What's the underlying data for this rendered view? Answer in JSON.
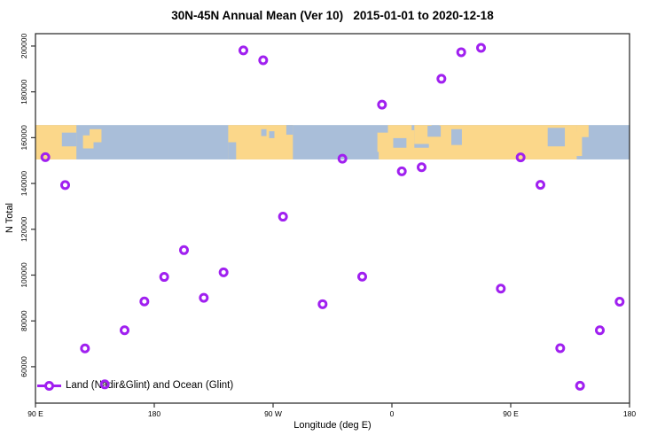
{
  "chart_data": {
    "type": "scatter",
    "title": "30N-45N Annual Mean (Ver 10)   2015-01-01 to 2020-12-18",
    "xlabel": "Longitude (deg E)",
    "ylabel": "N Total",
    "x_range": [
      90,
      540
    ],
    "y_range": [
      44100,
      205400
    ],
    "grid": "off",
    "legend_position": "bottom-left",
    "x_ticks": [
      {
        "x": 90,
        "label": "90 E"
      },
      {
        "x": 180,
        "label": "180"
      },
      {
        "x": 270,
        "label": "90 W"
      },
      {
        "x": 360,
        "label": "0"
      },
      {
        "x": 450,
        "label": "90 E"
      },
      {
        "x": 540,
        "label": "180"
      }
    ],
    "y_ticks": [
      {
        "v": 60000,
        "label": "60000"
      },
      {
        "v": 80000,
        "label": "80000"
      },
      {
        "v": 100000,
        "label": "100000"
      },
      {
        "v": 120000,
        "label": "120000"
      },
      {
        "v": 140000,
        "label": "140000"
      },
      {
        "v": 160000,
        "label": "160000"
      },
      {
        "v": 180000,
        "label": "180000"
      },
      {
        "v": 200000,
        "label": "200000"
      }
    ],
    "series": [
      {
        "name": "Land (Nadir&Glint) and Ocean (Glint)",
        "marker": "open-circle",
        "points": [
          {
            "lon": 97.5,
            "n": 151500
          },
          {
            "lon": 112.5,
            "n": 139300
          },
          {
            "lon": 127.5,
            "n": 68000
          },
          {
            "lon": 142.5,
            "n": 52300
          },
          {
            "lon": 157.5,
            "n": 75900
          },
          {
            "lon": 172.5,
            "n": 88500
          },
          {
            "lon": 187.5,
            "n": 99200
          },
          {
            "lon": 202.5,
            "n": 110900
          },
          {
            "lon": 217.5,
            "n": 90100
          },
          {
            "lon": 232.5,
            "n": 101200
          },
          {
            "lon": 247.5,
            "n": 198100
          },
          {
            "lon": 262.5,
            "n": 193800
          },
          {
            "lon": 277.5,
            "n": 125500
          },
          {
            "lon": 307.5,
            "n": 87300
          },
          {
            "lon": 322.5,
            "n": 150800
          },
          {
            "lon": 337.5,
            "n": 99300
          },
          {
            "lon": 352.5,
            "n": 174400
          },
          {
            "lon": 367.5,
            "n": 145300
          },
          {
            "lon": 382.5,
            "n": 147100
          },
          {
            "lon": 397.5,
            "n": 185700
          },
          {
            "lon": 412.5,
            "n": 197300
          },
          {
            "lon": 427.5,
            "n": 199200
          },
          {
            "lon": 442.5,
            "n": 94100
          },
          {
            "lon": 457.5,
            "n": 151400
          },
          {
            "lon": 472.5,
            "n": 139400
          },
          {
            "lon": 487.5,
            "n": 68100
          },
          {
            "lon": 502.5,
            "n": 51700
          },
          {
            "lon": 517.5,
            "n": 75900
          },
          {
            "lon": 532.5,
            "n": 88400
          }
        ]
      }
    ],
    "map_band": {
      "description": "world coastline strip for 30N-45N drawn across plot",
      "value_top": 165500,
      "value_bottom": 150500,
      "land_patches": [
        [
          90,
          121,
          0,
          1
        ],
        [
          126,
          134,
          0.3,
          0.68
        ],
        [
          131,
          140,
          0.12,
          0.5
        ],
        [
          236,
          285,
          0,
          1
        ],
        [
          349,
          361,
          0.22,
          0.78
        ],
        [
          357,
          375,
          0,
          0.38
        ],
        [
          371,
          377,
          0.15,
          0.85
        ],
        [
          377,
          390,
          0,
          0.55
        ],
        [
          388,
          399,
          0.25,
          0.72
        ],
        [
          350,
          397,
          0.66,
          1
        ],
        [
          396,
          500,
          0,
          1
        ],
        [
          489,
          504,
          0.2,
          0.9
        ],
        [
          500,
          509,
          0,
          0.35
        ]
      ],
      "sea_patches": [
        [
          110,
          121,
          0.22,
          0.62
        ],
        [
          236,
          242,
          0.5,
          1
        ],
        [
          261,
          265,
          0.12,
          0.32
        ],
        [
          267,
          271,
          0.18,
          0.38
        ],
        [
          280,
          285,
          0,
          0.28
        ],
        [
          387,
          397,
          0.02,
          0.34
        ],
        [
          405,
          413,
          0.12,
          0.58
        ],
        [
          478,
          491,
          0.08,
          0.62
        ]
      ]
    },
    "legend": {
      "label": "Land (Nadir&Glint) and Ocean (Glint)"
    },
    "colors": {
      "point": "#A020F0",
      "land": "#FBD78A",
      "ocean": "#A9BED9",
      "axis": "#222222",
      "tick": "#333333",
      "text": "#000000"
    }
  }
}
